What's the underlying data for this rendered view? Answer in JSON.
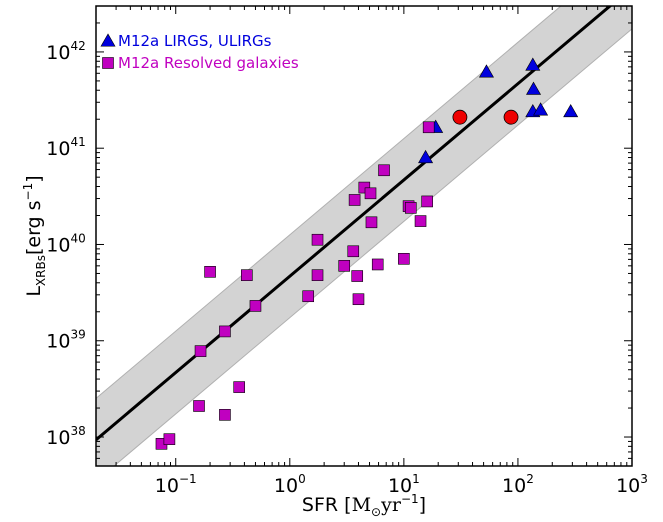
{
  "chart_data": {
    "type": "scatter",
    "xscale": "log",
    "yscale": "log",
    "xlim": [
      0.02,
      1000
    ],
    "ylim": [
      5e+37,
      3e+42
    ],
    "x_ticks": [
      {
        "value": 0.1,
        "base": "10",
        "exp": "−1"
      },
      {
        "value": 1,
        "base": "10",
        "exp": "0"
      },
      {
        "value": 10,
        "base": "10",
        "exp": "1"
      },
      {
        "value": 100,
        "base": "10",
        "exp": "2"
      },
      {
        "value": 1000,
        "base": "10",
        "exp": "3"
      }
    ],
    "y_ticks": [
      {
        "value": 1e+38,
        "base": "10",
        "exp": "38"
      },
      {
        "value": 1e+39,
        "base": "10",
        "exp": "39"
      },
      {
        "value": 1e+40,
        "base": "10",
        "exp": "40"
      },
      {
        "value": 1e+41,
        "base": "10",
        "exp": "41"
      },
      {
        "value": 1e+42,
        "base": "10",
        "exp": "42"
      }
    ],
    "xlabel": {
      "prefix": "SFR [",
      "main": "M",
      "sub": "⊙",
      "unit": "yr",
      "sup": "−1",
      "suffix": "]"
    },
    "ylabel": {
      "main": "L",
      "sub": "XRBs",
      "bracket_open": "[erg s",
      "sup": "−1",
      "bracket_close": "]"
    },
    "legend_position": "top-left",
    "fit_line": {
      "intercept_log": 39.67,
      "slope": 1.0,
      "band_dex": 0.43,
      "color": "#000000",
      "band_color": "#d3d3d3"
    },
    "series": [
      {
        "name": "M12a LIRGS, ULIRGs",
        "marker": "triangle",
        "color": "#0000dd",
        "points": [
          {
            "x": 15.5,
            "y": 8e+40
          },
          {
            "x": 19,
            "y": 1.65e+41
          },
          {
            "x": 53,
            "y": 6.2e+41
          },
          {
            "x": 135,
            "y": 7.3e+41
          },
          {
            "x": 137,
            "y": 4.1e+41
          },
          {
            "x": 135,
            "y": 2.4e+41
          },
          {
            "x": 158,
            "y": 2.5e+41
          },
          {
            "x": 290,
            "y": 2.4e+41
          }
        ]
      },
      {
        "name": "M12a Resolved galaxies",
        "marker": "square",
        "color": "#c000c0",
        "points": [
          {
            "x": 0.075,
            "y": 8.5e+37
          },
          {
            "x": 0.088,
            "y": 9.5e+37
          },
          {
            "x": 0.16,
            "y": 2.1e+38
          },
          {
            "x": 0.165,
            "y": 7.8e+38
          },
          {
            "x": 0.2,
            "y": 5.2e+39
          },
          {
            "x": 0.27,
            "y": 1.25e+39
          },
          {
            "x": 0.27,
            "y": 1.7e+38
          },
          {
            "x": 0.36,
            "y": 3.3e+38
          },
          {
            "x": 0.42,
            "y": 4.8e+39
          },
          {
            "x": 0.5,
            "y": 2.3e+39
          },
          {
            "x": 1.45,
            "y": 2.9e+39
          },
          {
            "x": 1.75,
            "y": 1.12e+40
          },
          {
            "x": 1.75,
            "y": 4.8e+39
          },
          {
            "x": 3.0,
            "y": 6e+39
          },
          {
            "x": 3.6,
            "y": 8.5e+39
          },
          {
            "x": 3.7,
            "y": 2.9e+40
          },
          {
            "x": 3.9,
            "y": 4.7e+39
          },
          {
            "x": 4.0,
            "y": 2.7e+39
          },
          {
            "x": 4.5,
            "y": 3.9e+40
          },
          {
            "x": 5.1,
            "y": 3.4e+40
          },
          {
            "x": 5.2,
            "y": 1.7e+40
          },
          {
            "x": 5.9,
            "y": 6.2e+39
          },
          {
            "x": 6.7,
            "y": 5.9e+40
          },
          {
            "x": 10.0,
            "y": 7.1e+39
          },
          {
            "x": 11.0,
            "y": 2.5e+40
          },
          {
            "x": 11.5,
            "y": 2.4e+40
          },
          {
            "x": 14.0,
            "y": 1.75e+40
          },
          {
            "x": 16.0,
            "y": 2.8e+40
          },
          {
            "x": 16.5,
            "y": 1.65e+41
          }
        ]
      },
      {
        "name": "",
        "marker": "circle",
        "color": "#ee0000",
        "points": [
          {
            "x": 31,
            "y": 2.1e+41
          },
          {
            "x": 87,
            "y": 2.1e+41
          }
        ]
      }
    ]
  }
}
